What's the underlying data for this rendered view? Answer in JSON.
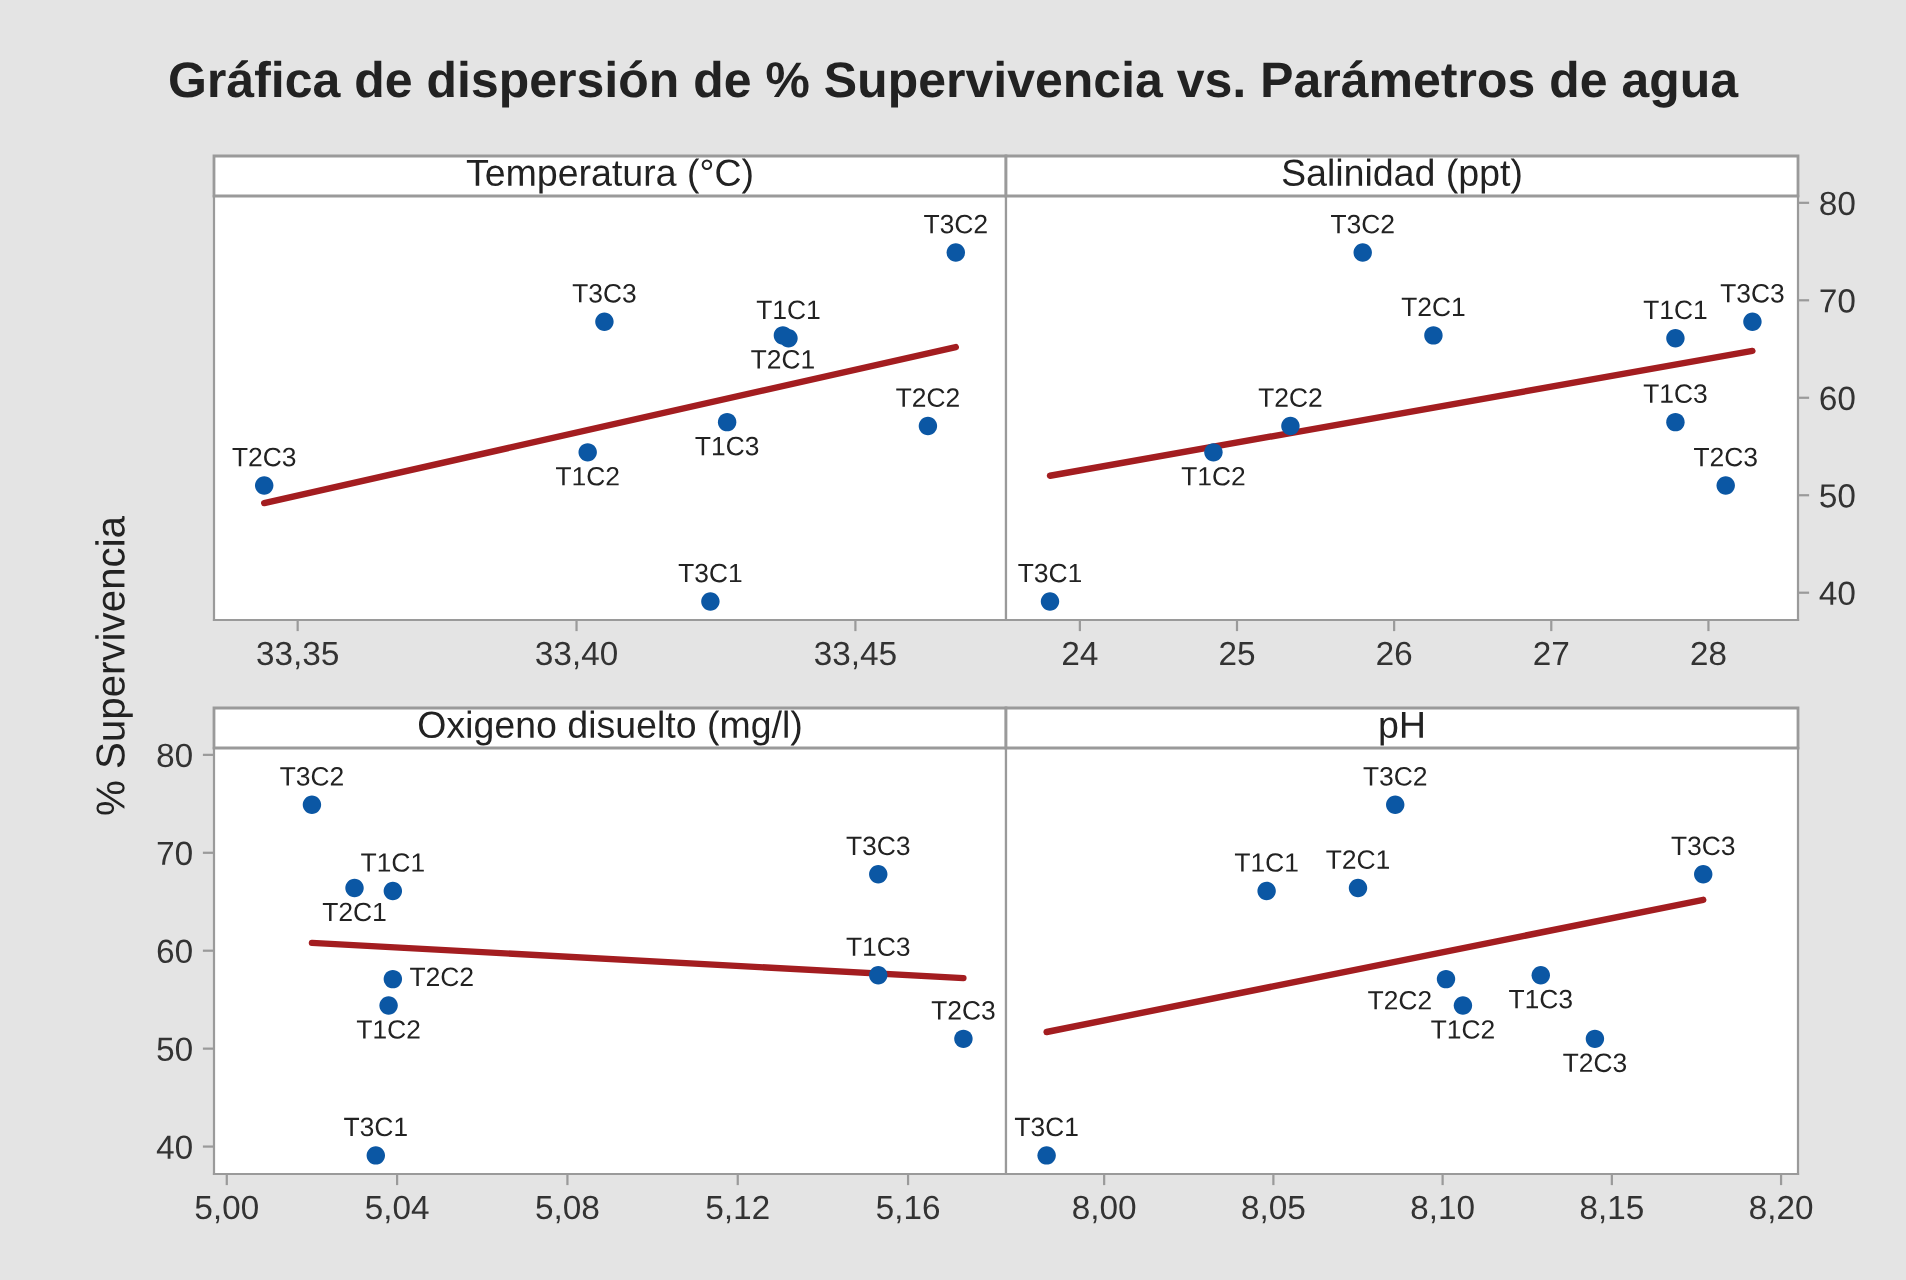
{
  "chart_data": [
    {
      "type": "scatter",
      "title": "Gráfica de dispersión de % Supervivencia vs. Parámetros de agua",
      "ylabel": "% Supervivencia",
      "xlabel": "Temperatura (°C)",
      "tick_labels": "x",
      "xlim": [
        33.335,
        33.477
      ],
      "xticks": [
        {
          "value": 33.35,
          "label": "33,35"
        },
        {
          "value": 33.4,
          "label": "33,40"
        },
        {
          "value": 33.45,
          "label": "33,45"
        }
      ],
      "ylim": [
        37.2,
        80.7
      ],
      "yticks": [
        40,
        50,
        60,
        70,
        80
      ],
      "series": [
        {
          "marker": "circle",
          "color": "#0b57a4",
          "x": [
            33.438,
            33.402,
            33.427,
            33.437,
            33.463,
            33.344,
            33.424,
            33.468,
            33.405
          ],
          "values": [
            66.1,
            54.4,
            57.5,
            66.4,
            57.1,
            51.0,
            39.1,
            74.9,
            67.8
          ]
        },
        {
          "type": "line",
          "line_style": "solid",
          "color": "#a31d20",
          "x": [
            33.344,
            33.468
          ],
          "values": [
            49.2,
            65.2
          ]
        }
      ],
      "annotations": [
        {
          "text": "T1C1",
          "x": 33.438,
          "y": 66.1
        },
        {
          "text": "T1C2",
          "x": 33.402,
          "y": 54.4
        },
        {
          "text": "T1C3",
          "x": 33.427,
          "y": 57.5
        },
        {
          "text": "T2C1",
          "x": 33.437,
          "y": 66.4
        },
        {
          "text": "T2C2",
          "x": 33.463,
          "y": 57.1
        },
        {
          "text": "T2C3",
          "x": 33.344,
          "y": 51.0
        },
        {
          "text": "T3C1",
          "x": 33.424,
          "y": 39.1
        },
        {
          "text": "T3C2",
          "x": 33.468,
          "y": 74.9
        },
        {
          "text": "T3C3",
          "x": 33.405,
          "y": 67.8
        }
      ]
    },
    {
      "type": "scatter",
      "xlabel": "Salinidad (ppt)",
      "xlim": [
        23.53,
        28.57
      ],
      "xticks": [
        24,
        25,
        26,
        27,
        28
      ],
      "ylim": [
        37.2,
        80.7
      ],
      "yticks": [
        40,
        50,
        60,
        70,
        80
      ],
      "series": [
        {
          "marker": "circle",
          "color": "#0b57a4",
          "x": [
            27.79,
            24.85,
            27.79,
            26.25,
            25.34,
            28.11,
            23.81,
            25.8,
            28.28
          ],
          "values": [
            66.1,
            54.4,
            57.5,
            66.4,
            57.1,
            51.0,
            39.1,
            74.9,
            67.8
          ]
        },
        {
          "type": "line",
          "line_style": "solid",
          "color": "#a31d20",
          "x": [
            23.81,
            28.28
          ],
          "values": [
            52.0,
            64.8
          ]
        }
      ],
      "annotations": [
        {
          "text": "T1C1",
          "x": 27.79,
          "y": 66.1
        },
        {
          "text": "T1C2",
          "x": 24.85,
          "y": 54.4
        },
        {
          "text": "T1C3",
          "x": 27.79,
          "y": 57.5
        },
        {
          "text": "T2C1",
          "x": 26.25,
          "y": 66.4
        },
        {
          "text": "T2C2",
          "x": 25.34,
          "y": 57.1
        },
        {
          "text": "T2C3",
          "x": 28.11,
          "y": 51.0
        },
        {
          "text": "T3C1",
          "x": 23.81,
          "y": 39.1
        },
        {
          "text": "T3C2",
          "x": 25.8,
          "y": 74.9
        },
        {
          "text": "T3C3",
          "x": 28.28,
          "y": 67.8
        }
      ]
    },
    {
      "type": "scatter",
      "xlabel": "Oxigeno disuelto (mg/l)",
      "xlim": [
        4.997,
        5.183
      ],
      "xticks": [
        {
          "value": 5.0,
          "label": "5,00"
        },
        {
          "value": 5.04,
          "label": "5,04"
        },
        {
          "value": 5.08,
          "label": "5,08"
        },
        {
          "value": 5.12,
          "label": "5,12"
        },
        {
          "value": 5.16,
          "label": "5,16"
        }
      ],
      "ylim": [
        37.2,
        80.7
      ],
      "yticks": [
        40,
        50,
        60,
        70,
        80
      ],
      "series": [
        {
          "marker": "circle",
          "color": "#0b57a4",
          "x": [
            5.039,
            5.038,
            5.153,
            5.03,
            5.039,
            5.173,
            5.035,
            5.02,
            5.153
          ],
          "values": [
            66.1,
            54.4,
            57.5,
            66.4,
            57.1,
            51.0,
            39.1,
            74.9,
            67.8
          ]
        },
        {
          "type": "line",
          "line_style": "solid",
          "color": "#a31d20",
          "x": [
            5.02,
            5.173
          ],
          "values": [
            60.8,
            57.2
          ]
        }
      ],
      "annotations": [
        {
          "text": "T1C1",
          "x": 5.039,
          "y": 66.1
        },
        {
          "text": "T1C2",
          "x": 5.038,
          "y": 54.4
        },
        {
          "text": "T1C3",
          "x": 5.153,
          "y": 57.5
        },
        {
          "text": "T2C1",
          "x": 5.03,
          "y": 66.4
        },
        {
          "text": "T2C2",
          "x": 5.039,
          "y": 57.1
        },
        {
          "text": "T2C3",
          "x": 5.173,
          "y": 51.0
        },
        {
          "text": "T3C1",
          "x": 5.035,
          "y": 39.1
        },
        {
          "text": "T3C2",
          "x": 5.02,
          "y": 74.9
        },
        {
          "text": "T3C3",
          "x": 5.153,
          "y": 67.8
        }
      ]
    },
    {
      "type": "scatter",
      "xlabel": "pH",
      "tick_labels": "x",
      "xlim": [
        7.971,
        8.205
      ],
      "xticks": [
        {
          "value": 8.0,
          "label": "8,00"
        },
        {
          "value": 8.05,
          "label": "8,05"
        },
        {
          "value": 8.1,
          "label": "8,10"
        },
        {
          "value": 8.15,
          "label": "8,15"
        },
        {
          "value": 8.2,
          "label": "8,20"
        }
      ],
      "ylim": [
        37.2,
        80.7
      ],
      "yticks": [
        40,
        50,
        60,
        70,
        80
      ],
      "series": [
        {
          "marker": "circle",
          "color": "#0b57a4",
          "x": [
            8.048,
            8.106,
            8.129,
            8.075,
            8.101,
            8.145,
            7.983,
            8.086,
            8.177
          ],
          "values": [
            66.1,
            54.4,
            57.5,
            66.4,
            57.1,
            51.0,
            39.1,
            74.9,
            67.8
          ]
        },
        {
          "type": "line",
          "line_style": "solid",
          "color": "#a31d20",
          "x": [
            7.983,
            8.177
          ],
          "values": [
            51.7,
            65.2
          ]
        }
      ],
      "annotations": [
        {
          "text": "T1C1",
          "x": 8.048,
          "y": 66.1
        },
        {
          "text": "T1C2",
          "x": 8.106,
          "y": 54.4
        },
        {
          "text": "T1C3",
          "x": 8.129,
          "y": 57.5
        },
        {
          "text": "T2C1",
          "x": 8.075,
          "y": 66.4
        },
        {
          "text": "T2C2",
          "x": 8.101,
          "y": 57.1
        },
        {
          "text": "T2C3",
          "x": 8.145,
          "y": 51.0
        },
        {
          "text": "T3C1",
          "x": 7.983,
          "y": 39.1
        },
        {
          "text": "T3C2",
          "x": 8.086,
          "y": 74.9
        },
        {
          "text": "T3C3",
          "x": 8.177,
          "y": 67.8
        }
      ]
    }
  ]
}
